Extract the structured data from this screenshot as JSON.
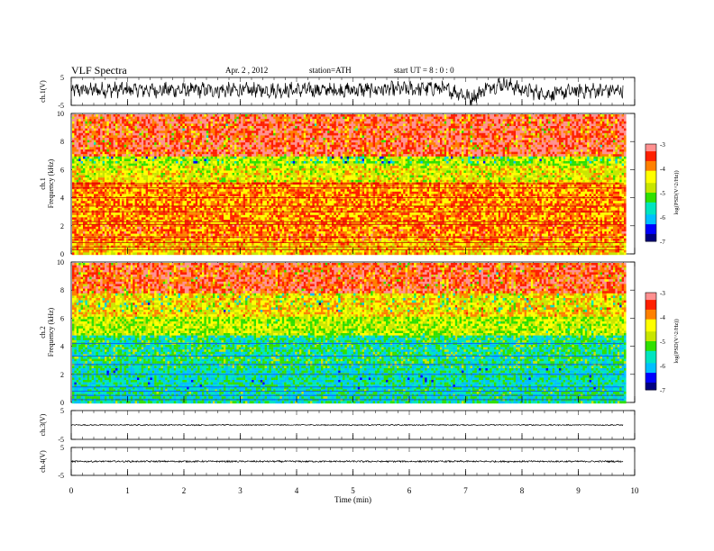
{
  "header": {
    "title": "VLF  Spectra",
    "date": "Apr. 2  , 2012",
    "station": "station=ATH",
    "start": "start  UT  =   8  : 0  : 0"
  },
  "colors": {
    "spectrogram_scale": [
      "#000080",
      "#0000ff",
      "#00bfff",
      "#00e5c0",
      "#30e000",
      "#c8e600",
      "#ffff00",
      "#ff8000",
      "#ff2000",
      "#ff9090"
    ],
    "waveform": "#000000",
    "axes": "#000000"
  },
  "chart_data": [
    {
      "type": "line",
      "title": "",
      "ylabel": "ch.1(V)",
      "ylim": [
        -5,
        5
      ],
      "yticks": [
        "5",
        "-5"
      ],
      "xlim": [
        0,
        10
      ],
      "series": [
        {
          "x": [
            0,
            1,
            2,
            3,
            4,
            5,
            6,
            6.5,
            6.9,
            7.1,
            7.4,
            7.7,
            8,
            8.5,
            9,
            9.8
          ],
          "values": [
            0.5,
            0.6,
            0.5,
            0.4,
            0.5,
            0.5,
            0.8,
            1.2,
            -0.5,
            -2.5,
            1.5,
            2.8,
            0.5,
            -1.0,
            0.2,
            0.3
          ]
        }
      ]
    },
    {
      "type": "heatmap",
      "title": "",
      "ylabel": "ch.1\nFrequency  (kHz)",
      "ylim": [
        0,
        10
      ],
      "yticks": [
        "0",
        "2",
        "4",
        "6",
        "8",
        "10"
      ],
      "xlim": [
        0,
        10
      ],
      "colorbar": {
        "label": "log(PSD(V^2/Hz))",
        "range": [
          -7,
          -3
        ],
        "ticks": [
          "-3",
          "-4",
          "-5",
          "-6",
          "-7"
        ]
      },
      "bands": [
        {
          "from": 0,
          "to": 1,
          "log_psd": -4.2
        },
        {
          "from": 1,
          "to": 2.2,
          "log_psd": -3.8
        },
        {
          "from": 2.2,
          "to": 5.2,
          "log_psd": -3.9
        },
        {
          "from": 5.2,
          "to": 6.3,
          "log_psd": -4.5
        },
        {
          "from": 6.3,
          "to": 7.0,
          "log_psd": -4.8
        },
        {
          "from": 7.0,
          "to": 10,
          "log_psd": -3.3
        }
      ]
    },
    {
      "type": "heatmap",
      "title": "",
      "ylabel": "ch.2\nFrequency  (kHz)",
      "ylim": [
        0,
        10
      ],
      "yticks": [
        "0",
        "2",
        "4",
        "6",
        "8",
        "10"
      ],
      "xlim": [
        0,
        10
      ],
      "colorbar": {
        "label": "log(PSD(V^2/Hz))",
        "range": [
          -7,
          -3
        ],
        "ticks": [
          "-3",
          "-4",
          "-5",
          "-6",
          "-7"
        ]
      },
      "bands": [
        {
          "from": 0,
          "to": 1,
          "log_psd": -5.6
        },
        {
          "from": 1,
          "to": 2.5,
          "log_psd": -5.7
        },
        {
          "from": 2.5,
          "to": 4.8,
          "log_psd": -5.5
        },
        {
          "from": 4.8,
          "to": 6.2,
          "log_psd": -4.8
        },
        {
          "from": 6.2,
          "to": 7.8,
          "log_psd": -4.3
        },
        {
          "from": 7.8,
          "to": 10,
          "log_psd": -3.4
        }
      ]
    },
    {
      "type": "line",
      "title": "",
      "ylabel": "ch.3(V)",
      "ylim": [
        -5,
        5
      ],
      "yticks": [
        "5",
        "-5"
      ],
      "xlim": [
        0,
        10
      ],
      "series": [
        {
          "x": [
            0,
            9.8
          ],
          "values": [
            0,
            0
          ]
        }
      ]
    },
    {
      "type": "line",
      "title": "",
      "ylabel": "ch.4(V)",
      "ylim": [
        -5,
        5
      ],
      "yticks": [
        "5",
        "-5"
      ],
      "xlim": [
        0,
        10
      ],
      "xlabel": "Time  (min)",
      "xticks": [
        "0",
        "1",
        "2",
        "3",
        "4",
        "5",
        "6",
        "7",
        "8",
        "9",
        "10"
      ],
      "series": [
        {
          "x": [
            0,
            9.8
          ],
          "values": [
            0,
            0
          ]
        }
      ]
    }
  ]
}
